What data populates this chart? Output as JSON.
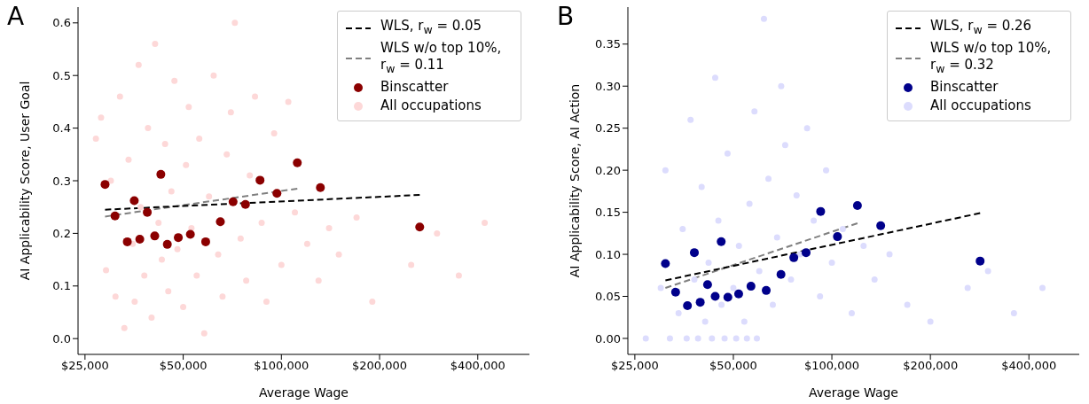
{
  "chart_data": [
    {
      "type": "scatter",
      "title": "A",
      "xlabel": "Average Wage",
      "ylabel": "AI Applicability Score, User Goal",
      "log": "x",
      "legend": "top right",
      "grid": false,
      "xlim": [
        23800,
        576000
      ],
      "xticks": [
        {
          "value": 25000,
          "label": "$25,000"
        },
        {
          "value": 50000,
          "label": "$50,000"
        },
        {
          "value": 100000,
          "label": "$100,000"
        },
        {
          "value": 200000,
          "label": "$200,000"
        },
        {
          "value": 400000,
          "label": "$400,000"
        }
      ],
      "ylim": [
        -0.03,
        0.63
      ],
      "yticks": [
        {
          "value": 0,
          "label": "0.0"
        },
        {
          "value": 0.1,
          "label": "0.1"
        },
        {
          "value": 0.2,
          "label": "0.2"
        },
        {
          "value": 0.3,
          "label": "0.3"
        },
        {
          "value": 0.4,
          "label": "0.4"
        },
        {
          "value": 0.5,
          "label": "0.5"
        },
        {
          "value": 0.6,
          "label": "0.6"
        }
      ],
      "series": [
        {
          "name": "WLS, r$_{w}$ = 0.05",
          "type": "line",
          "line_style": "dashed",
          "color": "#000000",
          "x": [
            28800,
            265500
          ],
          "values": [
            0.245,
            0.273
          ]
        },
        {
          "name": "WLS w/o top 10%, r$_{w}$ = 0.11",
          "type": "line",
          "line_style": "dashed",
          "color": "#808080",
          "x": [
            28800,
            111900
          ],
          "values": [
            0.232,
            0.285
          ]
        },
        {
          "name": "Binscatter",
          "marker": "circle",
          "color": "#8b0000",
          "x": [
            28800,
            30900,
            33700,
            35400,
            36800,
            38800,
            40900,
            42700,
            44700,
            48300,
            52600,
            58600,
            65000,
            71100,
            77600,
            86000,
            96900,
            111900,
            131700,
            265500
          ],
          "values": [
            0.293,
            0.233,
            0.184,
            0.262,
            0.189,
            0.24,
            0.195,
            0.312,
            0.179,
            0.192,
            0.198,
            0.184,
            0.222,
            0.26,
            0.255,
            0.301,
            0.276,
            0.334,
            0.287,
            0.212
          ]
        },
        {
          "name": "All occupations",
          "marker": "circle",
          "color": "#fdd8d8",
          "x": [
            27000,
            28000,
            29000,
            30000,
            31000,
            32000,
            33000,
            34000,
            35000,
            35500,
            36500,
            37000,
            38000,
            39000,
            40000,
            41000,
            42000,
            43000,
            44000,
            45000,
            46000,
            47000,
            48000,
            50000,
            51000,
            52000,
            53000,
            55000,
            56000,
            58000,
            60000,
            62000,
            64000,
            66000,
            68000,
            70000,
            72000,
            75000,
            78000,
            80000,
            83000,
            87000,
            90000,
            95000,
            100000,
            105000,
            110000,
            120000,
            130000,
            140000,
            150000,
            170000,
            190000,
            250000,
            300000,
            350000,
            420000
          ],
          "values": [
            0.38,
            0.42,
            0.13,
            0.3,
            0.08,
            0.46,
            0.02,
            0.34,
            0.18,
            0.07,
            0.52,
            0.25,
            0.12,
            0.4,
            0.04,
            0.56,
            0.22,
            0.15,
            0.37,
            0.09,
            0.28,
            0.49,
            0.17,
            0.06,
            0.33,
            0.44,
            0.21,
            0.12,
            0.38,
            0.01,
            0.27,
            0.5,
            0.16,
            0.08,
            0.35,
            0.43,
            0.6,
            0.19,
            0.11,
            0.31,
            0.46,
            0.22,
            0.07,
            0.39,
            0.14,
            0.45,
            0.24,
            0.18,
            0.11,
            0.21,
            0.16,
            0.23,
            0.07,
            0.14,
            0.2,
            0.12,
            0.22
          ]
        }
      ]
    },
    {
      "type": "scatter",
      "title": "B",
      "xlabel": "Average Wage",
      "ylabel": "AI Applicability Score, AI Action",
      "log": "x",
      "legend": "top right",
      "grid": false,
      "xlim": [
        23800,
        570000
      ],
      "xticks": [
        {
          "value": 25000,
          "label": "$25,000"
        },
        {
          "value": 50000,
          "label": "$50,000"
        },
        {
          "value": 100000,
          "label": "$100,000"
        },
        {
          "value": 200000,
          "label": "$200,000"
        },
        {
          "value": 400000,
          "label": "$400,000"
        }
      ],
      "ylim": [
        -0.019,
        0.394
      ],
      "yticks": [
        {
          "value": 0,
          "label": "0.00"
        },
        {
          "value": 0.05,
          "label": "0.05"
        },
        {
          "value": 0.1,
          "label": "0.10"
        },
        {
          "value": 0.15,
          "label": "0.15"
        },
        {
          "value": 0.2,
          "label": "0.20"
        },
        {
          "value": 0.25,
          "label": "0.25"
        },
        {
          "value": 0.3,
          "label": "0.30"
        },
        {
          "value": 0.35,
          "label": "0.35"
        }
      ],
      "series": [
        {
          "name": "WLS, r$_{w}$ = 0.26",
          "type": "line",
          "line_style": "dashed",
          "color": "#000000",
          "x": [
            31000,
            283800
          ],
          "values": [
            0.069,
            0.149
          ]
        },
        {
          "name": "WLS w/o top 10%, r$_{w}$ = 0.32",
          "type": "line",
          "line_style": "dashed",
          "color": "#808080",
          "x": [
            31000,
            119700
          ],
          "values": [
            0.06,
            0.137
          ]
        },
        {
          "name": "Binscatter",
          "marker": "circle",
          "color": "#00008b",
          "x": [
            31000,
            33300,
            36200,
            38000,
            39600,
            41700,
            44000,
            45900,
            48100,
            51900,
            56600,
            63000,
            69900,
            76500,
            83400,
            92400,
            104000,
            119700,
            141000,
            283800
          ],
          "values": [
            0.089,
            0.055,
            0.039,
            0.102,
            0.043,
            0.064,
            0.05,
            0.115,
            0.049,
            0.053,
            0.062,
            0.057,
            0.076,
            0.096,
            0.102,
            0.151,
            0.121,
            0.158,
            0.134,
            0.092
          ]
        },
        {
          "name": "All occupations",
          "marker": "circle",
          "color": "#dcdcfd",
          "x": [
            27000,
            30000,
            31000,
            32000,
            34000,
            35000,
            36000,
            37000,
            38000,
            39000,
            40000,
            41000,
            42000,
            43000,
            44000,
            45000,
            46000,
            47000,
            48000,
            50000,
            51000,
            52000,
            54000,
            55000,
            56000,
            58000,
            59000,
            60000,
            62000,
            64000,
            66000,
            68000,
            70000,
            72000,
            75000,
            78000,
            80000,
            84000,
            88000,
            92000,
            96000,
            100000,
            108000,
            115000,
            125000,
            135000,
            150000,
            170000,
            200000,
            260000,
            300000,
            360000,
            440000
          ],
          "values": [
            0,
            0.06,
            0.2,
            0,
            0.03,
            0.13,
            0,
            0.26,
            0.07,
            0,
            0.18,
            0.02,
            0.09,
            0,
            0.31,
            0.14,
            0.04,
            0,
            0.22,
            0.06,
            0,
            0.11,
            0.02,
            0,
            0.16,
            0.27,
            0,
            0.08,
            0.38,
            0.19,
            0.04,
            0.12,
            0.3,
            0.23,
            0.07,
            0.17,
            0.1,
            0.25,
            0.14,
            0.05,
            0.2,
            0.09,
            0.13,
            0.03,
            0.11,
            0.07,
            0.1,
            0.04,
            0.02,
            0.06,
            0.08,
            0.03,
            0.06
          ]
        }
      ]
    }
  ]
}
